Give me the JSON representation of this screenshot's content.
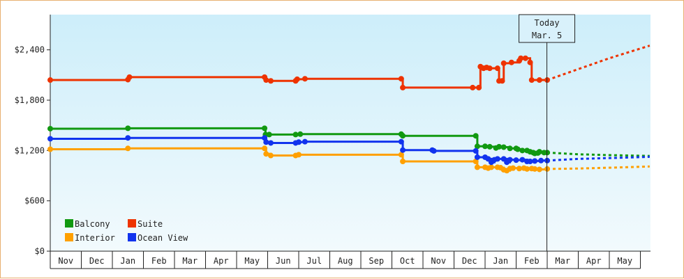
{
  "chart_data": {
    "type": "line",
    "step": true,
    "y_ticks": [
      {
        "value": 0,
        "label": "$0"
      },
      {
        "value": 600,
        "label": "$600"
      },
      {
        "value": 1200,
        "label": "$1,200"
      },
      {
        "value": 1800,
        "label": "$1,800"
      },
      {
        "value": 2400,
        "label": "$2,400"
      }
    ],
    "ylim": [
      0,
      2820
    ],
    "x_months": [
      "Nov",
      "Dec",
      "Jan",
      "Feb",
      "Mar",
      "Apr",
      "May",
      "Jun",
      "Jul",
      "Aug",
      "Sep",
      "Oct",
      "Nov",
      "Dec",
      "Jan",
      "Feb",
      "Mar",
      "Apr",
      "May"
    ],
    "xlim": [
      0,
      19.3
    ],
    "grid": false,
    "legend_position": "bottom-left",
    "today": {
      "line1": "Today",
      "line2": "Mar. 5",
      "x": 15.99
    },
    "series": [
      {
        "name": "Balcony",
        "color": "#119911",
        "points": [
          [
            0,
            1460
          ],
          [
            2.5,
            1465
          ],
          [
            6.9,
            1465
          ],
          [
            6.93,
            1390
          ],
          [
            7.05,
            1390
          ],
          [
            7.9,
            1390
          ],
          [
            8.05,
            1395
          ],
          [
            11.3,
            1395
          ],
          [
            11.35,
            1375
          ],
          [
            13.7,
            1375
          ],
          [
            13.75,
            1250
          ],
          [
            14,
            1250
          ],
          [
            14.15,
            1245
          ],
          [
            14.35,
            1230
          ],
          [
            14.45,
            1245
          ],
          [
            14.6,
            1240
          ],
          [
            14.8,
            1225
          ],
          [
            15,
            1225
          ],
          [
            15.05,
            1215
          ],
          [
            15.2,
            1200
          ],
          [
            15.35,
            1200
          ],
          [
            15.45,
            1185
          ],
          [
            15.55,
            1175
          ],
          [
            15.6,
            1165
          ],
          [
            15.7,
            1170
          ],
          [
            15.75,
            1185
          ],
          [
            15.9,
            1175
          ],
          [
            16,
            1175
          ]
        ],
        "projection": [
          [
            16,
            1175
          ],
          [
            17,
            1155
          ],
          [
            18,
            1145
          ],
          [
            19.3,
            1135
          ]
        ]
      },
      {
        "name": "Suite",
        "color": "#ee3300",
        "points": [
          [
            0,
            2040
          ],
          [
            2.5,
            2045
          ],
          [
            2.55,
            2075
          ],
          [
            6.9,
            2075
          ],
          [
            6.95,
            2040
          ],
          [
            7.1,
            2030
          ],
          [
            7.9,
            2030
          ],
          [
            7.95,
            2050
          ],
          [
            8.2,
            2055
          ],
          [
            11.3,
            2055
          ],
          [
            11.35,
            1950
          ],
          [
            13.6,
            1950
          ],
          [
            13.8,
            1950
          ],
          [
            13.85,
            2200
          ],
          [
            13.95,
            2180
          ],
          [
            14.05,
            2190
          ],
          [
            14.15,
            2180
          ],
          [
            14.4,
            2180
          ],
          [
            14.45,
            2030
          ],
          [
            14.55,
            2030
          ],
          [
            14.6,
            2240
          ],
          [
            14.85,
            2250
          ],
          [
            15.1,
            2270
          ],
          [
            15.15,
            2300
          ],
          [
            15.3,
            2300
          ],
          [
            15.45,
            2250
          ],
          [
            15.5,
            2040
          ],
          [
            15.75,
            2040
          ],
          [
            16,
            2040
          ]
        ],
        "projection": [
          [
            16,
            2040
          ],
          [
            17,
            2170
          ],
          [
            18,
            2300
          ],
          [
            19.3,
            2450
          ]
        ]
      },
      {
        "name": "Interior",
        "color": "#ffa000",
        "points": [
          [
            0,
            1215
          ],
          [
            2.5,
            1225
          ],
          [
            6.9,
            1225
          ],
          [
            6.95,
            1160
          ],
          [
            7.1,
            1140
          ],
          [
            7.9,
            1140
          ],
          [
            8.0,
            1150
          ],
          [
            11.3,
            1150
          ],
          [
            11.35,
            1070
          ],
          [
            13.7,
            1070
          ],
          [
            13.75,
            1000
          ],
          [
            14,
            1000
          ],
          [
            14.1,
            990
          ],
          [
            14.2,
            1000
          ],
          [
            14.4,
            1000
          ],
          [
            14.5,
            995
          ],
          [
            14.6,
            970
          ],
          [
            14.7,
            960
          ],
          [
            14.8,
            985
          ],
          [
            14.9,
            990
          ],
          [
            15.1,
            985
          ],
          [
            15.25,
            990
          ],
          [
            15.35,
            980
          ],
          [
            15.5,
            985
          ],
          [
            15.6,
            980
          ],
          [
            15.75,
            975
          ],
          [
            16,
            980
          ]
        ],
        "projection": [
          [
            16,
            980
          ],
          [
            17,
            985
          ],
          [
            18,
            995
          ],
          [
            19.3,
            1010
          ]
        ]
      },
      {
        "name": "Ocean View",
        "color": "#1133ee",
        "points": [
          [
            0,
            1340
          ],
          [
            2.5,
            1350
          ],
          [
            6.9,
            1350
          ],
          [
            6.95,
            1300
          ],
          [
            7.1,
            1290
          ],
          [
            7.9,
            1290
          ],
          [
            8.0,
            1300
          ],
          [
            8.2,
            1305
          ],
          [
            11.3,
            1305
          ],
          [
            11.35,
            1205
          ],
          [
            12.3,
            1205
          ],
          [
            12.35,
            1195
          ],
          [
            13.7,
            1195
          ],
          [
            13.75,
            1120
          ],
          [
            14,
            1120
          ],
          [
            14.1,
            1100
          ],
          [
            14.2,
            1060
          ],
          [
            14.3,
            1090
          ],
          [
            14.4,
            1100
          ],
          [
            14.6,
            1100
          ],
          [
            14.7,
            1060
          ],
          [
            14.8,
            1090
          ],
          [
            15,
            1085
          ],
          [
            15.2,
            1090
          ],
          [
            15.35,
            1070
          ],
          [
            15.45,
            1070
          ],
          [
            15.6,
            1075
          ],
          [
            15.8,
            1080
          ],
          [
            16,
            1080
          ]
        ],
        "projection": [
          [
            16,
            1080
          ],
          [
            17,
            1100
          ],
          [
            18,
            1110
          ],
          [
            19.3,
            1125
          ]
        ]
      }
    ]
  }
}
